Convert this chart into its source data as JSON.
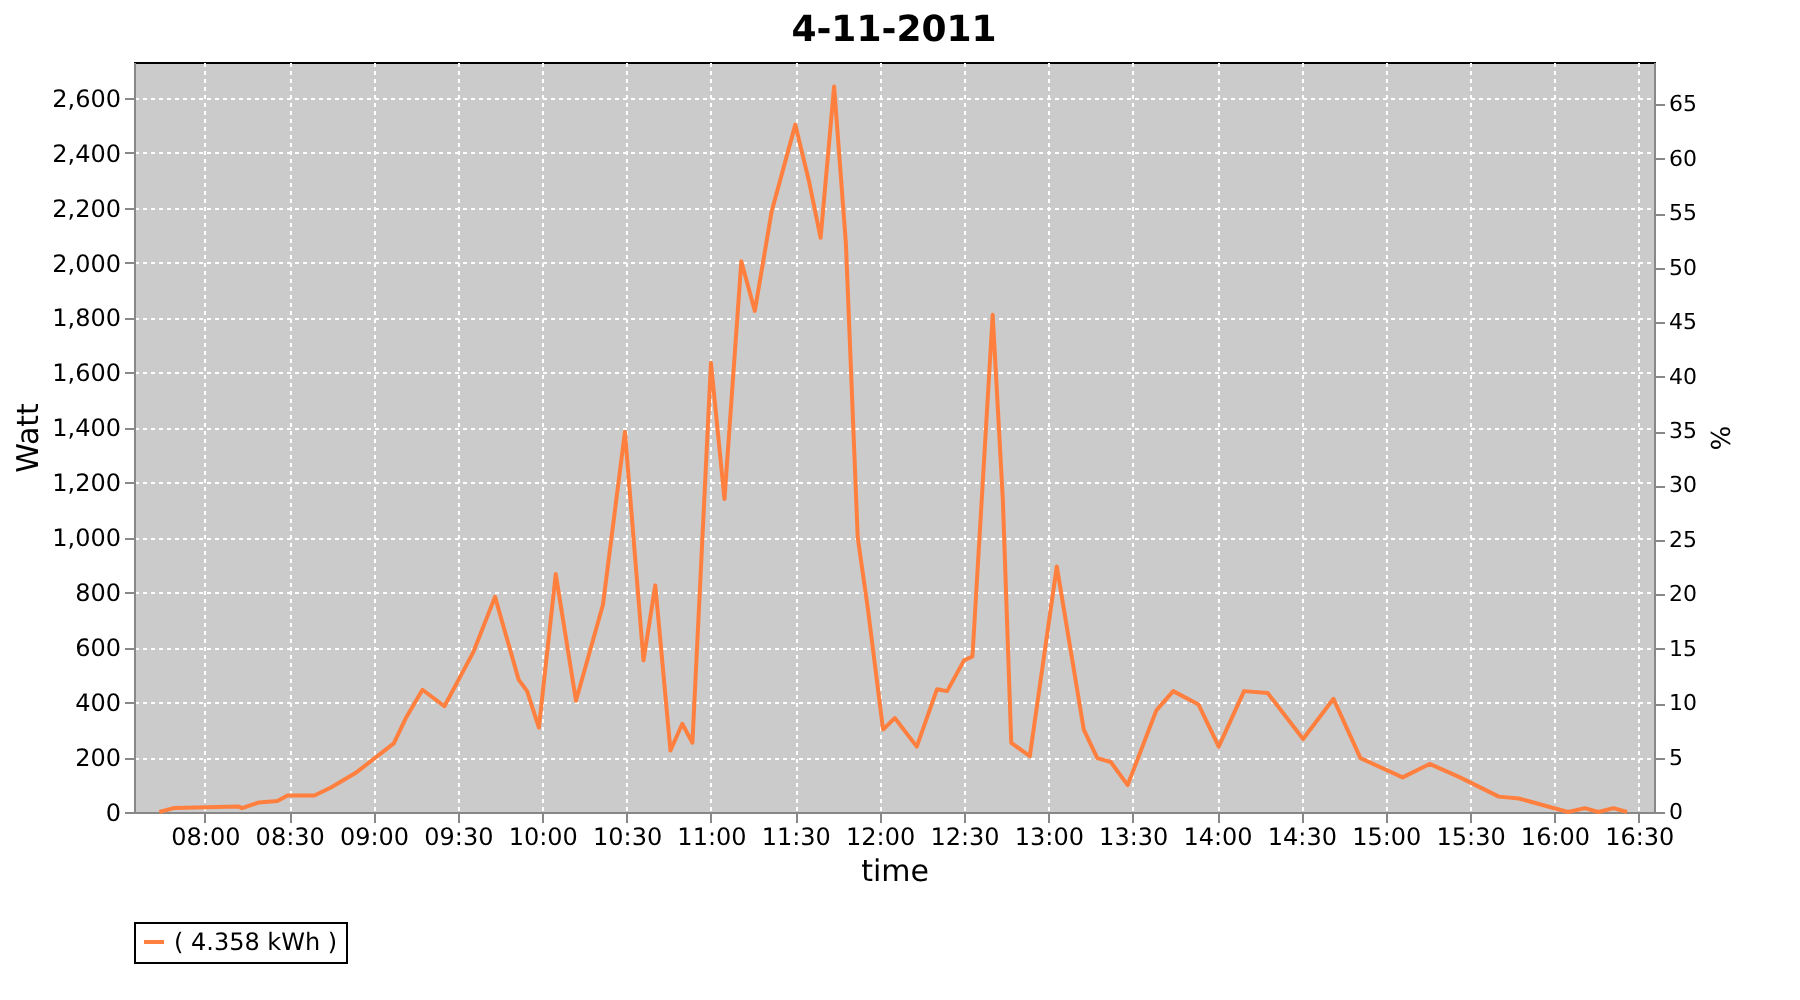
{
  "chart_data": {
    "type": "line",
    "title": "4-11-2011",
    "xlabel": "time",
    "ylabel": "Watt",
    "y2label": "%",
    "x": [
      7.73,
      7.82,
      8.2,
      8.22,
      8.32,
      8.43,
      8.49,
      8.65,
      8.75,
      8.9,
      9.12,
      9.19,
      9.29,
      9.42,
      9.59,
      9.72,
      9.86,
      9.91,
      9.98,
      10.08,
      10.2,
      10.36,
      10.49,
      10.6,
      10.67,
      10.76,
      10.83,
      10.89,
      11.0,
      11.08,
      11.18,
      11.26,
      11.36,
      11.5,
      11.58,
      11.65,
      11.73,
      11.8,
      11.87,
      11.93,
      12.02,
      12.09,
      12.22,
      12.34,
      12.4,
      12.5,
      12.55,
      12.67,
      12.73,
      12.78,
      12.89,
      13.05,
      13.21,
      13.29,
      13.37,
      13.47,
      13.64,
      13.74,
      13.89,
      14.01,
      14.16,
      14.3,
      14.51,
      14.69,
      14.85,
      15.1,
      15.26,
      15.44,
      15.67,
      15.79,
      16.08,
      16.18,
      16.26,
      16.35,
      16.43
    ],
    "series": [
      {
        "name": "( 4.358 kWh )",
        "color": "#ff7f3f",
        "values": [
          0,
          15,
          20,
          14,
          35,
          40,
          60,
          60,
          90,
          145,
          250,
          340,
          445,
          385,
          580,
          783,
          482,
          440,
          307,
          866,
          405,
          755,
          1384,
          552,
          825,
          224,
          321,
          252,
          1635,
          1139,
          2005,
          1824,
          2187,
          2502,
          2299,
          2090,
          2641,
          2068,
          999,
          741,
          300,
          342,
          238,
          447,
          440,
          552,
          566,
          1810,
          1139,
          252,
          203,
          894,
          300,
          196,
          182,
          98,
          370,
          440,
          391,
          238,
          440,
          433,
          266,
          412,
          196,
          126,
          175,
          126,
          56,
          49,
          0,
          14,
          0,
          14,
          0
        ]
      }
    ],
    "xlim": [
      7.58,
      16.59
    ],
    "xticks": [
      {
        "value": 8,
        "label": "08:00"
      },
      {
        "value": 8.5,
        "label": "08:30"
      },
      {
        "value": 9,
        "label": "09:00"
      },
      {
        "value": 9.5,
        "label": "09:30"
      },
      {
        "value": 10,
        "label": "10:00"
      },
      {
        "value": 10.5,
        "label": "10:30"
      },
      {
        "value": 11,
        "label": "11:00"
      },
      {
        "value": 11.5,
        "label": "11:30"
      },
      {
        "value": 12,
        "label": "12:00"
      },
      {
        "value": 12.5,
        "label": "12:30"
      },
      {
        "value": 13,
        "label": "13:00"
      },
      {
        "value": 13.5,
        "label": "13:30"
      },
      {
        "value": 14,
        "label": "14:00"
      },
      {
        "value": 14.5,
        "label": "14:30"
      },
      {
        "value": 15,
        "label": "15:00"
      },
      {
        "value": 15.5,
        "label": "15:30"
      },
      {
        "value": 16,
        "label": "16:00"
      },
      {
        "value": 16.5,
        "label": "16:30"
      }
    ],
    "ylim": [
      0,
      2730
    ],
    "yticks": [
      0,
      200,
      400,
      600,
      800,
      {
        "value": 1000,
        "label": "1,000"
      },
      {
        "value": 1200,
        "label": "1,200"
      },
      {
        "value": 1400,
        "label": "1,400"
      },
      {
        "value": 1600,
        "label": "1,600"
      },
      {
        "value": 1800,
        "label": "1,800"
      },
      {
        "value": 2000,
        "label": "2,000"
      },
      {
        "value": 2200,
        "label": "2,200"
      },
      {
        "value": 2400,
        "label": "2,400"
      },
      {
        "value": 2600,
        "label": "2,600"
      }
    ],
    "y2lim": [
      0,
      68.9
    ],
    "y2ticks": [
      0,
      5,
      10,
      15,
      20,
      25,
      30,
      35,
      40,
      45,
      50,
      55,
      60,
      65
    ],
    "grid": true,
    "legend": "bottom",
    "marker": "none",
    "line_style": "solid"
  }
}
